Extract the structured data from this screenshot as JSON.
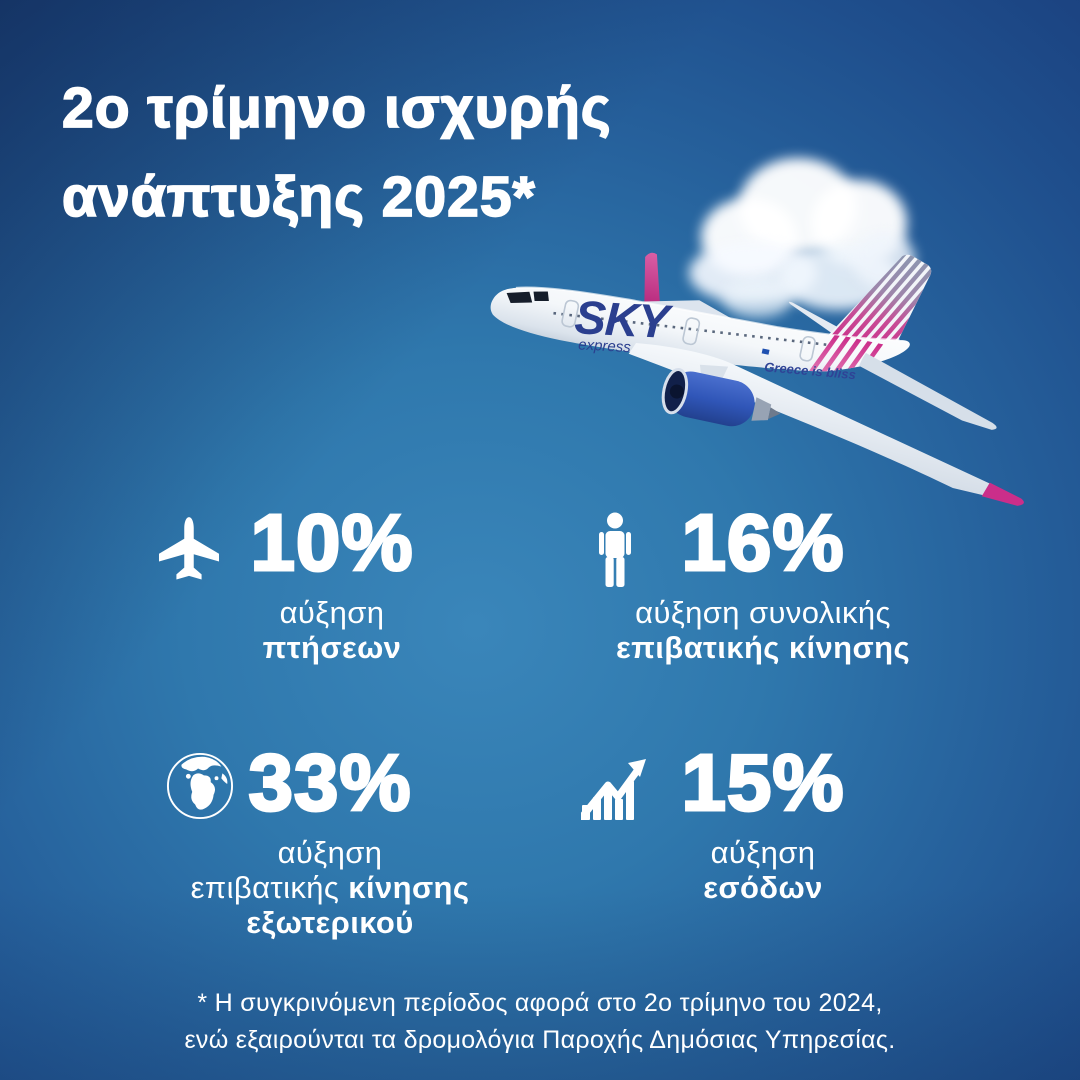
{
  "title": {
    "line1": "2ο τρίμηνο ισχυρής",
    "line2": "ανάπτυξης 2025*"
  },
  "plane": {
    "logo": "SKY",
    "logo_sub": "express",
    "slogan": "Greece is bliss"
  },
  "stats": [
    {
      "icon": "airplane-icon",
      "value": "10%",
      "lines": [
        [
          {
            "t": "αύξηση",
            "b": false
          }
        ],
        [
          {
            "t": "πτήσεων",
            "b": true
          }
        ]
      ]
    },
    {
      "icon": "person-icon",
      "value": "16%",
      "lines": [
        [
          {
            "t": "αύξηση συνολικής",
            "b": false
          }
        ],
        [
          {
            "t": "επιβατικής κίνησης",
            "b": true
          }
        ]
      ]
    },
    {
      "icon": "globe-icon",
      "value": "33%",
      "lines": [
        [
          {
            "t": "αύξηση",
            "b": false
          }
        ],
        [
          {
            "t": "επιβατικής ",
            "b": false
          },
          {
            "t": "κίνησης",
            "b": true
          }
        ],
        [
          {
            "t": "εξωτερικού",
            "b": true
          }
        ]
      ]
    },
    {
      "icon": "chart-icon",
      "value": "15%",
      "lines": [
        [
          {
            "t": "αύξηση",
            "b": false
          }
        ],
        [
          {
            "t": "εσόδων",
            "b": true
          }
        ]
      ]
    }
  ],
  "footnote": {
    "line1": "* Η συγκρινόμενη περίοδος αφορά στο 2ο τρίμηνο του 2024,",
    "line2": "ενώ εξαιρούνται τα δρομολόγια Παροχής Δημόσιας Υπηρεσίας."
  },
  "colors": {
    "background_center": "#3a86ba",
    "background_edge": "#1a3e7a",
    "text_white": "#ffffff",
    "brand_magenta": "#cb2e8a",
    "brand_navy": "#2b3f8f",
    "engine_blue": "#3056b8"
  }
}
